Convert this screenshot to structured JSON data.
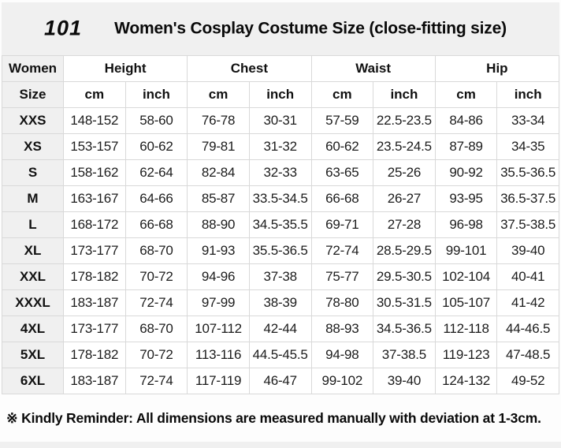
{
  "page": {
    "logo": "101",
    "title": "Women's Cosplay Costume Size (close-fitting size)",
    "footer_note": "※ Kindly Reminder: All dimensions are measured manually with deviation at 1-3cm."
  },
  "table": {
    "group_headers": [
      "Women",
      "Height",
      "Chest",
      "Waist",
      "Hip"
    ],
    "sub_headers": [
      "Size",
      "cm",
      "inch",
      "cm",
      "inch",
      "cm",
      "inch",
      "cm",
      "inch"
    ],
    "rows": [
      {
        "size": "XXS",
        "values": [
          "148-152",
          "58-60",
          "76-78",
          "30-31",
          "57-59",
          "22.5-23.5",
          "84-86",
          "33-34"
        ]
      },
      {
        "size": "XS",
        "values": [
          "153-157",
          "60-62",
          "79-81",
          "31-32",
          "60-62",
          "23.5-24.5",
          "87-89",
          "34-35"
        ]
      },
      {
        "size": "S",
        "values": [
          "158-162",
          "62-64",
          "82-84",
          "32-33",
          "63-65",
          "25-26",
          "90-92",
          "35.5-36.5"
        ]
      },
      {
        "size": "M",
        "values": [
          "163-167",
          "64-66",
          "85-87",
          "33.5-34.5",
          "66-68",
          "26-27",
          "93-95",
          "36.5-37.5"
        ]
      },
      {
        "size": "L",
        "values": [
          "168-172",
          "66-68",
          "88-90",
          "34.5-35.5",
          "69-71",
          "27-28",
          "96-98",
          "37.5-38.5"
        ]
      },
      {
        "size": "XL",
        "values": [
          "173-177",
          "68-70",
          "91-93",
          "35.5-36.5",
          "72-74",
          "28.5-29.5",
          "99-101",
          "39-40"
        ]
      },
      {
        "size": "XXL",
        "values": [
          "178-182",
          "70-72",
          "94-96",
          "37-38",
          "75-77",
          "29.5-30.5",
          "102-104",
          "40-41"
        ]
      },
      {
        "size": "XXXL",
        "values": [
          "183-187",
          "72-74",
          "97-99",
          "38-39",
          "78-80",
          "30.5-31.5",
          "105-107",
          "41-42"
        ]
      },
      {
        "size": "4XL",
        "values": [
          "173-177",
          "68-70",
          "107-112",
          "42-44",
          "88-93",
          "34.5-36.5",
          "112-118",
          "44-46.5"
        ]
      },
      {
        "size": "5XL",
        "values": [
          "178-182",
          "70-72",
          "113-116",
          "44.5-45.5",
          "94-98",
          "37-38.5",
          "119-123",
          "47-48.5"
        ]
      },
      {
        "size": "6XL",
        "values": [
          "183-187",
          "72-74",
          "117-119",
          "46-47",
          "99-102",
          "39-40",
          "124-132",
          "49-52"
        ]
      }
    ]
  },
  "colors": {
    "page_bg": "#f0f0f0",
    "cell_bg": "#ffffff",
    "border": "#d9d9d9",
    "text": "#111111"
  }
}
